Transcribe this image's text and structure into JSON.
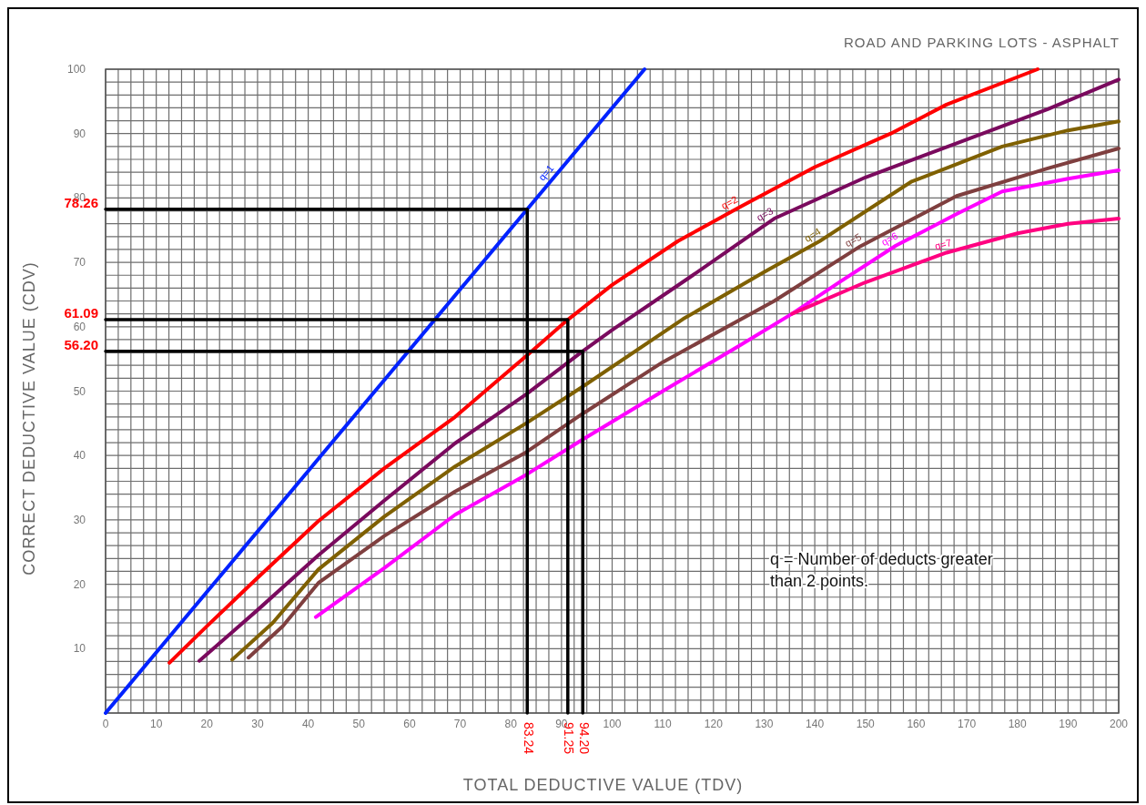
{
  "chart_data": {
    "type": "line",
    "title": "ROAD AND PARKING LOTS - ASPHALT",
    "xlabel": "TOTAL DEDUCTIVE VALUE (TDV)",
    "ylabel": "CORRECT DEDUCTIVE VALUE (CDV)",
    "xlim": [
      0,
      200
    ],
    "ylim": [
      0,
      100
    ],
    "xticks": [
      0,
      10,
      20,
      30,
      40,
      50,
      60,
      70,
      80,
      90,
      100,
      110,
      120,
      130,
      140,
      150,
      160,
      170,
      180,
      190,
      200
    ],
    "yticks": [
      10,
      20,
      30,
      40,
      50,
      60,
      70,
      80,
      90,
      100
    ],
    "grid": true,
    "marker": "none",
    "line_style": "solid",
    "series": [
      {
        "name": "q=1",
        "color": "#0022ff",
        "x": [
          0,
          20,
          40,
          60,
          83.24,
          106.4
        ],
        "values": [
          0,
          18.8,
          37.6,
          56.4,
          78.26,
          100
        ]
      },
      {
        "name": "q=2",
        "color": "#ff0000",
        "x": [
          12.6,
          20,
          30,
          42,
          55,
          69,
          83.24,
          91.25,
          100,
          113,
          125,
          140,
          155,
          166,
          184
        ],
        "values": [
          7.8,
          13.5,
          21,
          29.8,
          38,
          46,
          55.6,
          61.09,
          66.5,
          73.3,
          78.5,
          84.8,
          90,
          94.5,
          100
        ]
      },
      {
        "name": "q=3",
        "color": "#7a0a5e",
        "x": [
          18.5,
          30,
          42,
          55,
          69,
          83,
          94.2,
          100,
          115,
          132,
          150,
          168,
          186,
          200
        ],
        "values": [
          8.1,
          16,
          24.5,
          33,
          41.9,
          49.5,
          56.2,
          59.5,
          67.5,
          76.8,
          83.2,
          88.5,
          93.8,
          98.4
        ]
      },
      {
        "name": "q=4",
        "color": "#7f6000",
        "x": [
          25,
          33,
          42,
          55,
          69,
          83,
          94,
          114,
          130,
          141,
          159,
          177,
          190,
          200
        ],
        "values": [
          8.3,
          14,
          22.3,
          30.5,
          38.3,
          45,
          50.6,
          61.2,
          68.5,
          73.3,
          82.5,
          88,
          90.5,
          91.9
        ]
      },
      {
        "name": "q=5",
        "color": "#7f3f3f",
        "x": [
          28.2,
          35,
          42,
          55,
          69,
          83,
          94,
          110,
          132,
          149,
          168,
          186,
          200
        ],
        "values": [
          8.6,
          13.5,
          20.2,
          27.5,
          34.4,
          40.5,
          46.4,
          54.5,
          64,
          72.5,
          80.3,
          84.6,
          87.7
        ]
      },
      {
        "name": "q=6",
        "color": "#ff00ff",
        "x": [
          41.5,
          55,
          69,
          83,
          94,
          110,
          125,
          135.5,
          145,
          156,
          168,
          177,
          190,
          200
        ],
        "values": [
          14.9,
          22.5,
          30.8,
          37,
          42.4,
          50,
          57,
          62,
          67,
          72.6,
          77.5,
          81,
          83,
          84.3
        ]
      },
      {
        "name": "q=7",
        "color": "#ff0080",
        "x": [
          135.5,
          150,
          166,
          180,
          190,
          200
        ],
        "values": [
          62,
          66.9,
          71.5,
          74.5,
          76,
          76.8
        ]
      },
      {
        "color": "#000000",
        "x": [
          0,
          83.24,
          83.24
        ],
        "values": [
          78.26,
          78.26,
          0
        ]
      },
      {
        "color": "#000000",
        "x": [
          0,
          91.25,
          91.25
        ],
        "values": [
          61.09,
          61.09,
          0
        ]
      },
      {
        "color": "#000000",
        "x": [
          0,
          94.2,
          94.2
        ],
        "values": [
          56.2,
          56.2,
          0
        ]
      }
    ],
    "annotations": [
      {
        "text": "78.26",
        "x": 0,
        "y": 78.26
      },
      {
        "text": "61.09",
        "x": 0,
        "y": 61.09
      },
      {
        "text": "56.20",
        "x": 0,
        "y": 56.2
      },
      {
        "text": "83.24",
        "x": 83.24,
        "y": 0
      },
      {
        "text": "91.25",
        "x": 91.25,
        "y": 0
      },
      {
        "text": "94.20",
        "x": 94.2,
        "y": 0
      },
      "q = Number of deducts greater than 2 points."
    ]
  }
}
